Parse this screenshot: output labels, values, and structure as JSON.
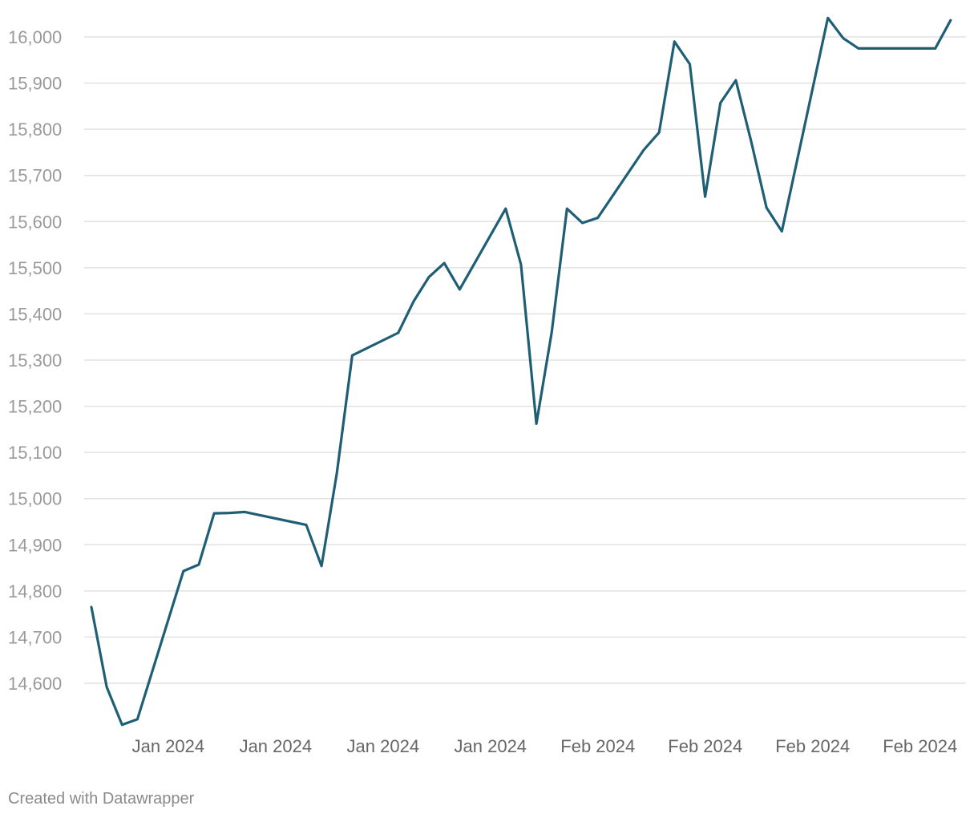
{
  "chart_data": {
    "type": "line",
    "title": "",
    "xlabel": "",
    "ylabel": "",
    "ylim": [
      14500,
      16050
    ],
    "xlim": [
      -0.5,
      56.9
    ],
    "y_ticks": [
      14600,
      14700,
      14800,
      14900,
      15000,
      15100,
      15200,
      15300,
      15400,
      15500,
      15600,
      15700,
      15800,
      15900,
      16000
    ],
    "y_tick_labels": [
      "14,600",
      "14,700",
      "14,800",
      "14,900",
      "15,000",
      "15,100",
      "15,200",
      "15,300",
      "15,400",
      "15,500",
      "15,600",
      "15,700",
      "15,800",
      "15,900",
      "16,000"
    ],
    "x_ticks": [
      2.5,
      9.5,
      16.5,
      23.5,
      30.5,
      37.5,
      44.5,
      51.5
    ],
    "x_tick_labels": [
      "Jan 2024",
      "Jan 2024",
      "Jan 2024",
      "Jan 2024",
      "Feb 2024",
      "Feb 2024",
      "Feb 2024",
      "Feb 2024"
    ],
    "grid": true,
    "legend": "none",
    "color": "#1f5f75",
    "series": [
      {
        "x": [
          0,
          1,
          2,
          3,
          6,
          7,
          8,
          9,
          10,
          14,
          15,
          16,
          17,
          20,
          21,
          22,
          23,
          24,
          27,
          28,
          29,
          30,
          31,
          32,
          33,
          36,
          37,
          38,
          39,
          40,
          41,
          42,
          43,
          44,
          45,
          48,
          49,
          50,
          51,
          52,
          53,
          54,
          55,
          56
        ],
        "values": [
          14765,
          14592,
          14510,
          14522,
          14843,
          14857,
          14968,
          14969,
          14971,
          14943,
          14854,
          15055,
          15310,
          15359,
          15427,
          15480,
          15510,
          15453,
          15628,
          15507,
          15162,
          15360,
          15628,
          15597,
          15608,
          15755,
          15793,
          15990,
          15941,
          15654,
          15857,
          15906,
          15774,
          15630,
          15579,
          16041,
          15997,
          15975,
          15975,
          15975,
          15975,
          15975,
          15975,
          16036
        ]
      }
    ]
  },
  "footer": {
    "credit": "Created with Datawrapper"
  }
}
